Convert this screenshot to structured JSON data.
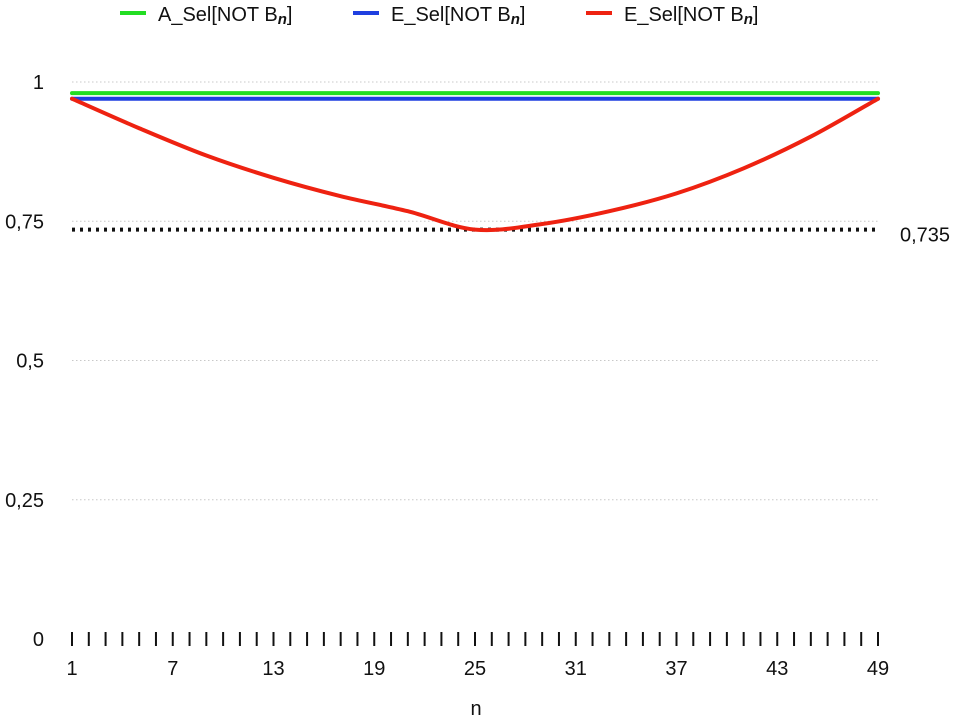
{
  "chart_data": {
    "type": "line",
    "title": "",
    "xlabel": "n",
    "ylabel": "",
    "xlim": [
      1,
      49
    ],
    "ylim": [
      0,
      1
    ],
    "x_ticks": [
      1,
      7,
      13,
      19,
      25,
      31,
      37,
      43,
      49
    ],
    "x_tick_labels": [
      "1",
      "7",
      "13",
      "19",
      "25",
      "31",
      "37",
      "43",
      "49"
    ],
    "y_ticks": [
      0,
      0.25,
      0.5,
      0.75,
      1
    ],
    "y_tick_labels": [
      "0",
      "0,25",
      "0,5",
      "0,75",
      "1"
    ],
    "grid": "horizontal dotted",
    "legend_position": "top",
    "series": [
      {
        "name": "A_Sel[NOT Bn]",
        "legend_label": {
          "prefix": "A_Sel[NOT B",
          "subscript": "n",
          "suffix": "]"
        },
        "color": "#22dd22",
        "style": "solid",
        "x": [
          1,
          49
        ],
        "values": [
          0.98,
          0.98
        ]
      },
      {
        "name": "E_Sel[NOT Bn]",
        "legend_label": {
          "prefix": "E_Sel[NOT B",
          "subscript": "n",
          "suffix": "]"
        },
        "color": "#1f3fe0",
        "style": "solid",
        "x": [
          1,
          49
        ],
        "values": [
          0.97,
          0.97
        ]
      },
      {
        "name": "E_Sel[NOT Bn]",
        "legend_label": {
          "prefix": "E_Sel[NOT B",
          "subscript": "n",
          "suffix": "]"
        },
        "color": "#ee2211",
        "style": "solid",
        "x": [
          1,
          5,
          9,
          13,
          17,
          21,
          25,
          29,
          33,
          37,
          41,
          45,
          49
        ],
        "values": [
          0.97,
          0.917,
          0.868,
          0.828,
          0.795,
          0.768,
          0.735,
          0.745,
          0.768,
          0.8,
          0.845,
          0.902,
          0.97
        ]
      }
    ],
    "reference_lines": [
      {
        "value": 0.735,
        "label": "0,735",
        "color": "#111111",
        "style": "dotted"
      }
    ]
  }
}
